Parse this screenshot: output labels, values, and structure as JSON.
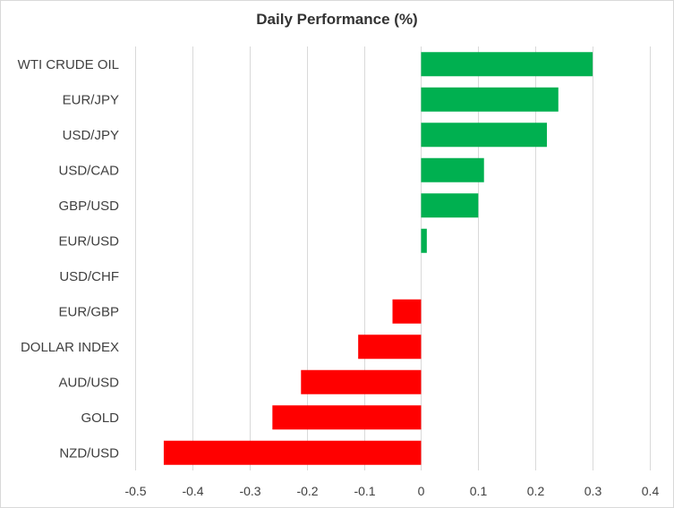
{
  "chart_data": {
    "type": "bar",
    "orientation": "horizontal",
    "title": "Daily Performance (%)",
    "xlabel": "",
    "ylabel": "",
    "xlim": [
      -0.5,
      0.4
    ],
    "xticks": [
      "-0.5",
      "-0.4",
      "-0.3",
      "-0.2",
      "-0.1",
      "0",
      "0.1",
      "0.2",
      "0.3",
      "0.4"
    ],
    "grid": "vertical",
    "categories": [
      "WTI CRUDE OIL",
      "EUR/JPY",
      "USD/JPY",
      "USD/CAD",
      "GBP/USD",
      "EUR/USD",
      "USD/CHF",
      "EUR/GBP",
      "DOLLAR INDEX",
      "AUD/USD",
      "GOLD",
      "NZD/USD"
    ],
    "values": [
      0.3,
      0.24,
      0.22,
      0.11,
      0.1,
      0.01,
      0.0,
      -0.05,
      -0.11,
      -0.21,
      -0.26,
      -0.45
    ],
    "colors": {
      "positive": "#00b050",
      "negative": "#ff0000",
      "grid": "#d9d9d9",
      "text": "#404040"
    }
  }
}
